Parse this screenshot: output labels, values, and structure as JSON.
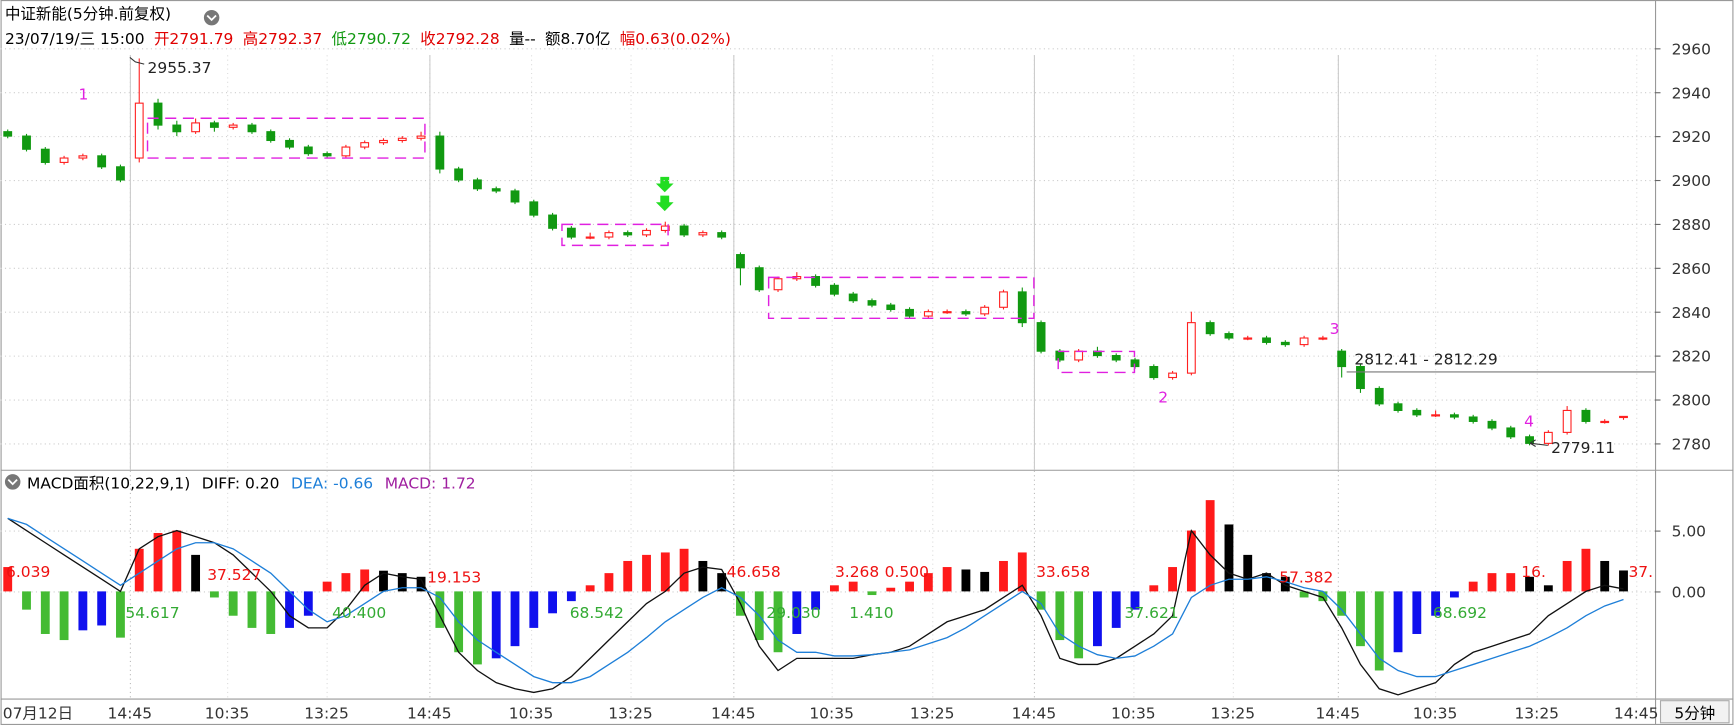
{
  "header": {
    "title": "中证新能(5分钟.前复权)",
    "info": [
      "23/07/19/三 15:00",
      "开2791.79",
      "高2792.37",
      "低2790.72",
      "收2792.28",
      "量--",
      "额8.70亿",
      "幅0.63(0.02%)"
    ]
  },
  "chart_data": [
    {
      "type": "candlestick",
      "ylim": [
        2768,
        2982
      ],
      "yticks": [
        2780,
        2800,
        2820,
        2840,
        2860,
        2880,
        2900,
        2920,
        2940,
        2960
      ],
      "grid": true,
      "up_color": "#ff2020",
      "down_color": "#119911",
      "xticks": [
        "07月12日",
        "14:45",
        "10:35",
        "13:25",
        "14:45",
        "10:35",
        "13:25",
        "14:45",
        "10:35",
        "13:25",
        "14:45",
        "10:35",
        "13:25",
        "14:45",
        "10:35",
        "13:25",
        "14:45"
      ],
      "period_label": "5分钟",
      "annotations": [
        "1",
        "2",
        "3",
        "4",
        "2955.37",
        "2779.11",
        "2812.41 - 2812.29"
      ],
      "series": [
        {
          "values": [
            [
              2922,
              2923,
              2919,
              2920
            ],
            [
              2920,
              2921,
              2913,
              2914
            ],
            [
              2914,
              2915,
              2907,
              2908
            ],
            [
              2908,
              2911,
              2907,
              2910
            ],
            [
              2910,
              2912,
              2909,
              2911
            ],
            [
              2911,
              2912,
              2905,
              2906
            ],
            [
              2906,
              2907,
              2899,
              2900
            ],
            [
              2910,
              2955.37,
              2908,
              2935
            ],
            [
              2935,
              2937,
              2923,
              2925
            ],
            [
              2925,
              2927,
              2920,
              2922
            ],
            [
              2922,
              2928,
              2921,
              2926
            ],
            [
              2926,
              2927,
              2922,
              2924
            ],
            [
              2924,
              2926,
              2923,
              2925
            ],
            [
              2925,
              2926,
              2921,
              2922
            ],
            [
              2922,
              2923,
              2917,
              2918
            ],
            [
              2918,
              2919,
              2914,
              2915
            ],
            [
              2915,
              2916,
              2911,
              2912
            ],
            [
              2912,
              2913,
              2910,
              2911
            ],
            [
              2911,
              2916,
              2910,
              2915
            ],
            [
              2915,
              2918,
              2914,
              2917
            ],
            [
              2917,
              2919,
              2916,
              2918
            ],
            [
              2918,
              2920,
              2917,
              2919
            ],
            [
              2919,
              2922,
              2918,
              2920
            ],
            [
              2920,
              2922,
              2903,
              2905
            ],
            [
              2905,
              2906,
              2899,
              2900
            ],
            [
              2900,
              2901,
              2895,
              2896
            ],
            [
              2896,
              2897,
              2894,
              2895
            ],
            [
              2895,
              2896,
              2889,
              2890
            ],
            [
              2890,
              2891,
              2883,
              2884
            ],
            [
              2884,
              2885,
              2877,
              2878
            ],
            [
              2878,
              2879,
              2873,
              2874
            ],
            [
              2874,
              2876,
              2873,
              2874
            ],
            [
              2874,
              2877,
              2873,
              2876
            ],
            [
              2876,
              2877,
              2874,
              2875
            ],
            [
              2875,
              2878,
              2874,
              2877
            ],
            [
              2877,
              2881,
              2876,
              2879
            ],
            [
              2879,
              2880,
              2874,
              2875
            ],
            [
              2875,
              2877,
              2874,
              2876
            ],
            [
              2876,
              2877,
              2873,
              2874
            ],
            [
              2866,
              2867,
              2852,
              2860
            ],
            [
              2860,
              2861,
              2849,
              2850
            ],
            [
              2850,
              2856,
              2849,
              2855
            ],
            [
              2855,
              2858,
              2854,
              2856
            ],
            [
              2856,
              2857,
              2851,
              2852
            ],
            [
              2852,
              2853,
              2847,
              2848
            ],
            [
              2848,
              2849,
              2844,
              2845
            ],
            [
              2845,
              2846,
              2842,
              2843
            ],
            [
              2843,
              2844,
              2840,
              2841
            ],
            [
              2841,
              2842,
              2837,
              2838
            ],
            [
              2838,
              2841,
              2837,
              2840
            ],
            [
              2840,
              2841,
              2839,
              2840
            ],
            [
              2840,
              2841,
              2838,
              2839
            ],
            [
              2839,
              2843,
              2838,
              2842
            ],
            [
              2842,
              2850,
              2841,
              2849
            ],
            [
              2849,
              2851,
              2833,
              2835
            ],
            [
              2835,
              2836,
              2821,
              2822
            ],
            [
              2822,
              2823,
              2817,
              2818
            ],
            [
              2818,
              2823,
              2817,
              2822
            ],
            [
              2822,
              2824,
              2819,
              2820
            ],
            [
              2820,
              2821,
              2817,
              2818
            ],
            [
              2818,
              2819,
              2814,
              2815
            ],
            [
              2815,
              2816,
              2809,
              2810
            ],
            [
              2810,
              2813,
              2809,
              2812
            ],
            [
              2812,
              2840,
              2811,
              2835
            ],
            [
              2835,
              2836,
              2829,
              2830
            ],
            [
              2830,
              2831,
              2827,
              2828
            ],
            [
              2828,
              2829,
              2827,
              2828
            ],
            [
              2828,
              2829,
              2825,
              2826
            ],
            [
              2826,
              2827,
              2824,
              2825
            ],
            [
              2825,
              2829,
              2824,
              2828
            ],
            [
              2828,
              2829,
              2827,
              2828
            ],
            [
              2822,
              2823,
              2810,
              2815
            ],
            [
              2815,
              2816,
              2803,
              2805
            ],
            [
              2805,
              2806,
              2797,
              2798
            ],
            [
              2798,
              2799,
              2794,
              2795
            ],
            [
              2795,
              2796,
              2792,
              2793
            ],
            [
              2793,
              2795,
              2792,
              2793
            ],
            [
              2793,
              2794,
              2791,
              2792
            ],
            [
              2792,
              2793,
              2789,
              2790
            ],
            [
              2790,
              2791,
              2786,
              2787
            ],
            [
              2787,
              2788,
              2782,
              2783
            ],
            [
              2783,
              2784,
              2779.11,
              2780
            ],
            [
              2780,
              2786,
              2779,
              2785
            ],
            [
              2785,
              2797,
              2784,
              2795
            ],
            [
              2795,
              2796,
              2789,
              2790
            ],
            [
              2790,
              2791,
              2789,
              2790
            ],
            [
              2791.79,
              2792.37,
              2790.72,
              2792.28
            ]
          ]
        }
      ]
    },
    {
      "type": "macd",
      "title": "MACD面积(10,22,9,1)",
      "legend": [
        "DIFF: 0.20",
        "DEA: -0.66",
        "MACD: 1.72"
      ],
      "ylim": [
        -8.8,
        10
      ],
      "yticks": [
        {
          "value": 0,
          "label": "0.00"
        },
        {
          "value": 5,
          "label": "5.00"
        }
      ],
      "colors": {
        "pos_up": "#ff1a1a",
        "pos_down": "#000000",
        "neg_down": "#44bb33",
        "neg_up": "#1010ee"
      },
      "annotations": [
        "6.039",
        "54.617",
        "37.527",
        "40.400",
        "19.153",
        "68.542",
        "46.658",
        "29.030",
        "1.410",
        "3.268",
        "0.500",
        "33.658",
        "37.621",
        "57.382",
        "68.692",
        "16.",
        "37."
      ],
      "series": [
        {
          "values": [
            2.0,
            -1.5,
            -3.5,
            -4.0,
            -3.2,
            -2.8,
            -3.8,
            3.5,
            4.8,
            5.0,
            3.0,
            -0.5,
            -2.0,
            -3.0,
            -3.5,
            -3.0,
            -2.0,
            0.8,
            1.5,
            1.8,
            1.7,
            1.5,
            1.2,
            -3.0,
            -5.0,
            -6.0,
            -5.5,
            -4.5,
            -3.0,
            -1.8,
            -0.8,
            0.5,
            1.5,
            2.5,
            3.0,
            3.2,
            3.5,
            2.5,
            1.5,
            -2.0,
            -4.0,
            -5.0,
            -3.5,
            -1.5,
            0.5,
            0.8,
            -0.3,
            0.3,
            0.8,
            1.5,
            2.0,
            1.8,
            1.6,
            2.5,
            3.2,
            -1.5,
            -4.0,
            -5.5,
            -4.5,
            -3.0,
            -1.5,
            0.5,
            2.0,
            5.0,
            7.5,
            5.5,
            3.0,
            1.5,
            1.2,
            -0.5,
            -0.8,
            -2.0,
            -4.5,
            -6.5,
            -5.0,
            -3.5,
            -2.0,
            -0.5,
            0.8,
            1.5,
            1.5,
            1.2,
            0.5,
            2.5,
            3.5,
            2.5,
            1.72
          ]
        },
        {
          "color": "#111111",
          "values": [
            6.0,
            5.0,
            4.0,
            3.0,
            2.0,
            1.0,
            0.0,
            3.5,
            4.5,
            5.0,
            4.5,
            4.0,
            3.0,
            1.5,
            0.0,
            -2.0,
            -3.0,
            -3.0,
            -1.5,
            0.5,
            1.5,
            1.2,
            1.0,
            -2.0,
            -5.0,
            -6.5,
            -7.5,
            -8.0,
            -8.3,
            -8.0,
            -7.0,
            -5.5,
            -4.0,
            -2.5,
            -1.0,
            0.0,
            1.5,
            2.0,
            1.8,
            -1.0,
            -4.5,
            -6.5,
            -5.5,
            -5.5,
            -5.5,
            -5.5,
            -5.2,
            -5.0,
            -4.5,
            -3.5,
            -2.5,
            -2.0,
            -1.5,
            -0.5,
            0.5,
            -2.0,
            -5.5,
            -6.0,
            -6.0,
            -5.5,
            -4.5,
            -3.5,
            -2.0,
            5.0,
            3.0,
            1.5,
            1.0,
            1.5,
            0.5,
            0.0,
            -0.5,
            -3.0,
            -6.0,
            -8.0,
            -8.5,
            -8.0,
            -7.5,
            -6.0,
            -5.0,
            -4.5,
            -4.0,
            -3.5,
            -2.0,
            -1.0,
            0.0,
            0.5,
            0.2
          ]
        },
        {
          "color": "#1e7fd8",
          "values": [
            6.0,
            5.5,
            4.5,
            3.5,
            2.5,
            1.5,
            0.5,
            1.5,
            2.5,
            3.5,
            4.0,
            4.0,
            3.5,
            2.5,
            1.5,
            0.0,
            -1.5,
            -2.5,
            -2.0,
            -1.0,
            0.0,
            0.3,
            0.3,
            -0.5,
            -2.5,
            -4.0,
            -5.0,
            -6.0,
            -7.0,
            -7.5,
            -7.5,
            -7.0,
            -6.0,
            -5.0,
            -3.8,
            -2.5,
            -1.5,
            -0.5,
            0.3,
            -0.5,
            -2.0,
            -4.0,
            -5.0,
            -5.0,
            -5.3,
            -5.3,
            -5.2,
            -5.0,
            -4.8,
            -4.3,
            -3.8,
            -3.0,
            -2.0,
            -1.0,
            0.0,
            -1.0,
            -3.5,
            -4.5,
            -5.2,
            -5.5,
            -5.3,
            -4.5,
            -3.5,
            -0.5,
            0.5,
            1.0,
            1.0,
            1.2,
            0.8,
            0.3,
            0.0,
            -1.5,
            -3.5,
            -5.5,
            -6.5,
            -7.0,
            -7.0,
            -6.5,
            -6.0,
            -5.5,
            -5.0,
            -4.5,
            -3.8,
            -3.0,
            -2.0,
            -1.2,
            -0.66
          ]
        }
      ]
    }
  ]
}
